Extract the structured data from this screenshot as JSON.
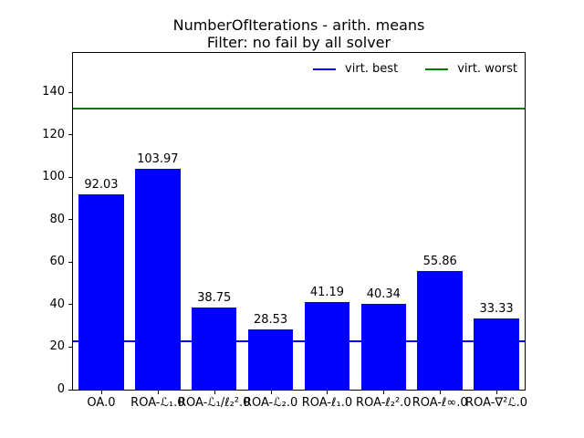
{
  "chart_data": {
    "type": "bar",
    "title": "NumberOfIterations - arith. means",
    "subtitle": "Filter: no fail by all solver",
    "xlabel": "",
    "ylabel": "",
    "categories": [
      "OA.0",
      "ROA-ℒ₁.0",
      "ROA-ℒ₁/ℓ₂².0",
      "ROA-ℒ₂.0",
      "ROA-ℓ₁.0",
      "ROA-ℓ₂².0",
      "ROA-ℓ∞.0",
      "ROA-∇²ℒ.0"
    ],
    "values": [
      92.03,
      103.97,
      38.75,
      28.53,
      41.19,
      40.34,
      55.86,
      33.33
    ],
    "bar_labels": [
      "92.03",
      "103.97",
      "38.75",
      "28.53",
      "41.19",
      "40.34",
      "55.86",
      "33.33"
    ],
    "bar_color": "#0000ff",
    "yticks": [
      0,
      20,
      40,
      60,
      80,
      100,
      120,
      140
    ],
    "ylim": [
      0,
      158.6
    ],
    "grid": false,
    "hlines": [
      {
        "key": "virt-best",
        "label": "virt. best",
        "value": 22.6,
        "color": "#0000ff"
      },
      {
        "key": "virt-worst",
        "label": "virt. worst",
        "value": 132.2,
        "color": "#008000"
      }
    ],
    "legend": {
      "position": "upper right, horizontal, frameless",
      "entries": [
        {
          "label": "virt. best",
          "color": "#0000ff"
        },
        {
          "label": "virt. worst",
          "color": "#008000"
        }
      ]
    }
  }
}
